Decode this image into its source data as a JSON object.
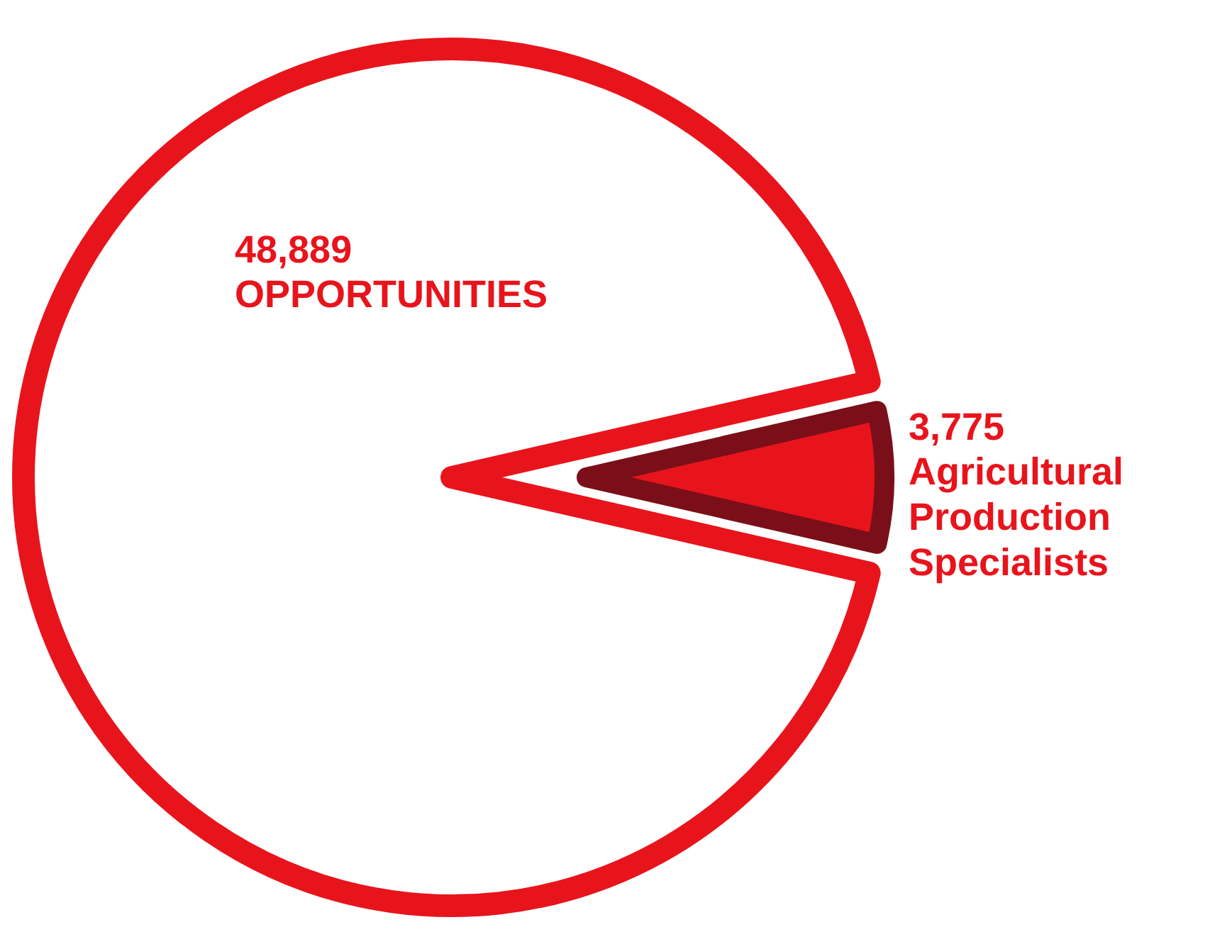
{
  "chart_data": {
    "type": "pie",
    "categories": [
      "OPPORTUNITIES",
      "Agricultural Production Specialists"
    ],
    "values": [
      48889,
      3775
    ],
    "value_labels": [
      "48,889",
      "3,775"
    ],
    "colors": [
      "#e8141c",
      "#e8141c"
    ]
  }
}
